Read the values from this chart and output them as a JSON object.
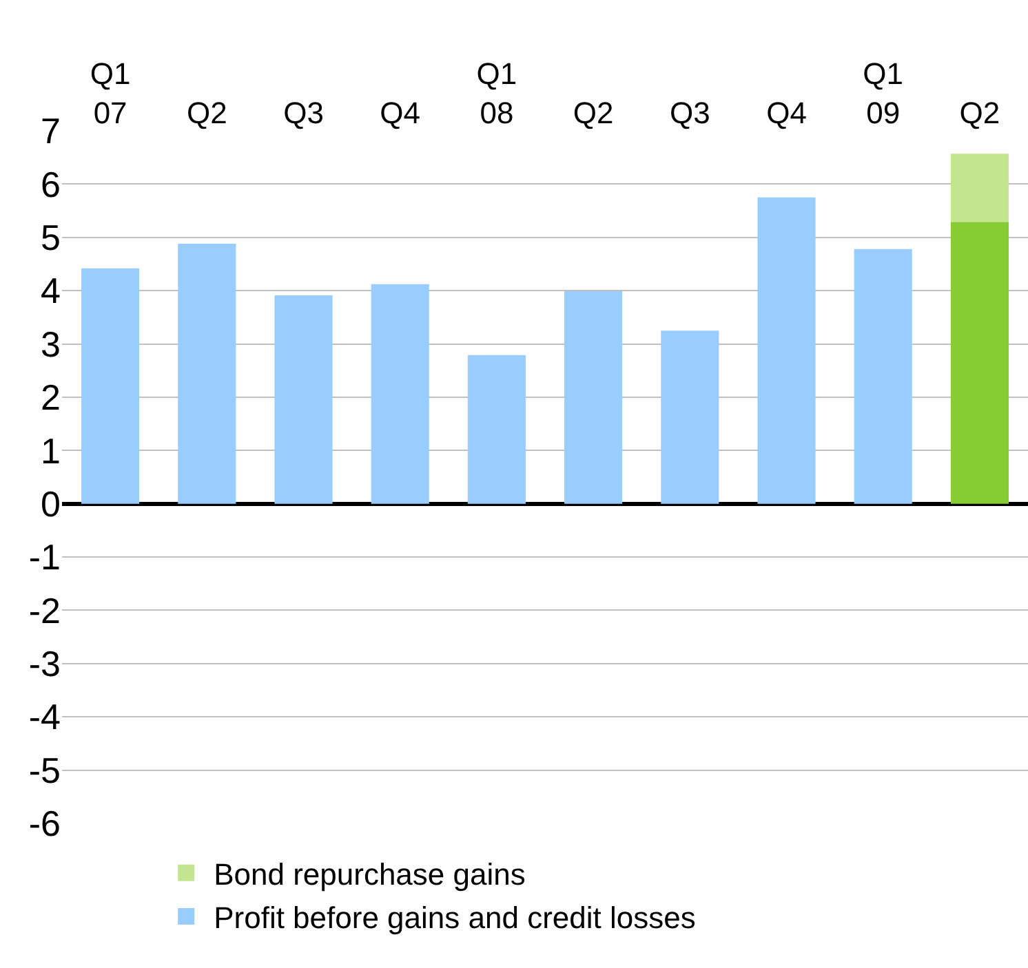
{
  "chart_data": {
    "type": "bar",
    "stacked": true,
    "categories": [
      "Q1\n07",
      "Q2",
      "Q3",
      "Q4",
      "Q1\n08",
      "Q2",
      "Q3",
      "Q4",
      "Q1\n09",
      "Q2"
    ],
    "series": [
      {
        "name": "Profit before gains and credit losses",
        "color": "#99ccff",
        "colors": [
          "#99ccff",
          "#99ccff",
          "#99ccff",
          "#99ccff",
          "#99ccff",
          "#99ccff",
          "#99ccff",
          "#99ccff",
          "#99ccff",
          "#88cc33"
        ],
        "values": [
          4.42,
          4.88,
          3.91,
          4.12,
          2.79,
          3.99,
          3.25,
          5.75,
          4.78,
          5.29
        ]
      },
      {
        "name": "Bond repurchase gains",
        "color": "#c4e58f",
        "values": [
          null,
          null,
          null,
          null,
          null,
          null,
          null,
          null,
          null,
          1.28
        ]
      }
    ],
    "ylim": [
      -6,
      7
    ],
    "yticks": [
      -6,
      -5,
      -4,
      -3,
      -2,
      -1,
      0,
      1,
      2,
      3,
      4,
      5,
      6,
      7
    ],
    "grid": "y",
    "legend": "bottom"
  }
}
